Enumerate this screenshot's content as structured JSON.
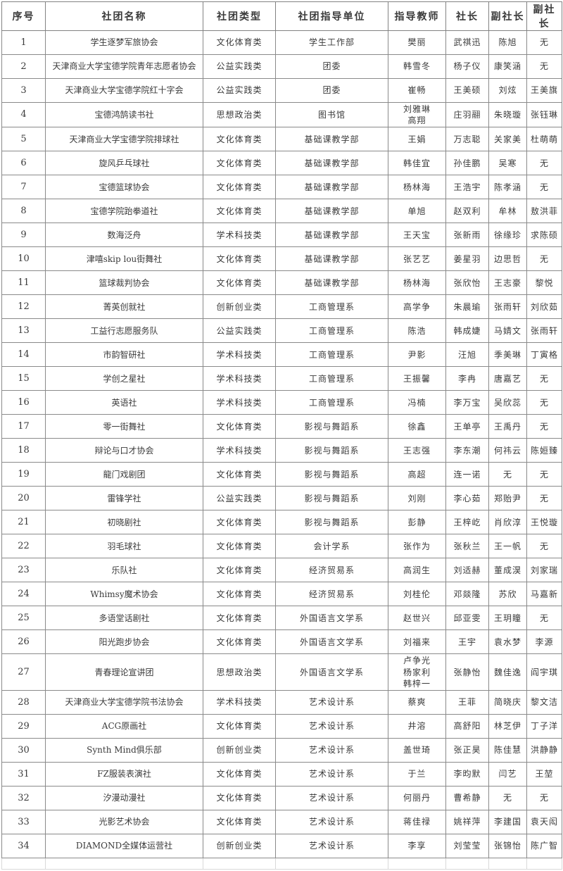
{
  "table": {
    "columns": [
      "序号",
      "社团名称",
      "社团类型",
      "社团指导单位",
      "指导教师",
      "社长",
      "副社长",
      "副社长"
    ],
    "rows": [
      [
        "1",
        "学生逐梦军旅协会",
        "文化体育类",
        "学生工作部",
        "樊丽",
        "武祺迅",
        "陈旭",
        "无"
      ],
      [
        "2",
        "天津商业大学宝德学院青年志愿者协会",
        "公益实践类",
        "团委",
        "韩雪冬",
        "杨子仪",
        "康笑涵",
        "无"
      ],
      [
        "3",
        "天津商业大学宝德学院红十字会",
        "公益实践类",
        "团委",
        "崔畅",
        "王美硕",
        "刘炫",
        "王美旗"
      ],
      [
        "4",
        "宝德鸿鹄读书社",
        "思想政治类",
        "图书馆",
        "刘雅琳\n高翔",
        "庄羽翮",
        "朱晓璇",
        "张钰琳"
      ],
      [
        "5",
        "天津商业大学宝德学院排球社",
        "文化体育类",
        "基础课教学部",
        "王娟",
        "万志聪",
        "关家美",
        "杜萌萌"
      ],
      [
        "6",
        "旋风乒乓球社",
        "文化体育类",
        "基础课教学部",
        "韩佳宜",
        "孙佳鹏",
        "吴寒",
        "无"
      ],
      [
        "7",
        "宝德篮球协会",
        "文化体育类",
        "基础课教学部",
        "杨林海",
        "王浩宇",
        "陈孝涵",
        "无"
      ],
      [
        "8",
        "宝德学院跆拳道社",
        "文化体育类",
        "基础课教学部",
        "单旭",
        "赵双利",
        "牟林",
        "敖洪菲"
      ],
      [
        "9",
        "数海泛舟",
        "学术科技类",
        "基础课教学部",
        "王天宝",
        "张新雨",
        "徐缘珍",
        "求陈硕"
      ],
      [
        "10",
        "津嘻skip lou街舞社",
        "文化体育类",
        "基础课教学部",
        "张艺艺",
        "姜星羽",
        "边思哲",
        "无"
      ],
      [
        "11",
        "篮球裁判协会",
        "文化体育类",
        "基础课教学部",
        "杨林海",
        "张欣怡",
        "王志豪",
        "黎悦"
      ],
      [
        "12",
        "菁英创就社",
        "创新创业类",
        "工商管理系",
        "高学争",
        "朱晨瑜",
        "张雨轩",
        "刘欣茹"
      ],
      [
        "13",
        "工益行志愿服务队",
        "公益实践类",
        "工商管理系",
        "陈浩",
        "韩成婕",
        "马婧文",
        "张雨轩"
      ],
      [
        "14",
        "市韵智研社",
        "学术科技类",
        "工商管理系",
        "尹影",
        "汪旭",
        "季美琳",
        "丁寅格"
      ],
      [
        "15",
        "学创之星社",
        "学术科技类",
        "工商管理系",
        "王振馨",
        "李冉",
        "唐嘉艺",
        "无"
      ],
      [
        "16",
        "英语社",
        "学术科技类",
        "工商管理系",
        "冯楠",
        "李万宝",
        "吴欣蕊",
        "无"
      ],
      [
        "17",
        "零一街舞社",
        "文化体育类",
        "影视与舞蹈系",
        "徐鑫",
        "王单亭",
        "王禹丹",
        "无"
      ],
      [
        "18",
        "辩论与口才协会",
        "学术科技类",
        "影视与舞蹈系",
        "王志强",
        "李东潮",
        "何祎云",
        "陈姮臻"
      ],
      [
        "19",
        "龍门戏剧团",
        "文化体育类",
        "影视与舞蹈系",
        "高超",
        "连一诺",
        "无",
        "无"
      ],
      [
        "20",
        "雷锋学社",
        "公益实践类",
        "影视与舞蹈系",
        "刘刚",
        "李心茹",
        "郑贻尹",
        "无"
      ],
      [
        "21",
        "初晓剧社",
        "文化体育类",
        "影视与舞蹈系",
        "彭静",
        "王梓屹",
        "肖欣淳",
        "王悦璇"
      ],
      [
        "22",
        "羽毛球社",
        "文化体育类",
        "会计学系",
        "张作为",
        "张秋兰",
        "王一帆",
        "无"
      ],
      [
        "23",
        "乐队社",
        "文化体育类",
        "经济贸易系",
        "高润生",
        "刘适赫",
        "董成淏",
        "刘家瑞"
      ],
      [
        "24",
        "Whimsy魔术协会",
        "文化体育类",
        "经济贸易系",
        "刘桂伦",
        "邓燚隆",
        "苏欣",
        "马嘉新"
      ],
      [
        "25",
        "多语堂话剧社",
        "文化体育类",
        "外国语言文学系",
        "赵世兴",
        "邱亚雯",
        "王玥瞳",
        "无"
      ],
      [
        "26",
        "阳光跑步协会",
        "文化体育类",
        "外国语言文学系",
        "刘福来",
        "王宇",
        "袁水梦",
        "李源"
      ],
      [
        "27",
        "青春理论宣讲团",
        "思想政治类",
        "外国语言文学系",
        "卢争光\n杨家利\n韩梓一",
        "张静怡",
        "魏佳逸",
        "阎宇琪"
      ],
      [
        "28",
        "天津商业大学宝德学院书法协会",
        "学术科技类",
        "艺术设计系",
        "蔡爽",
        "王菲",
        "简晓庆",
        "黎文洁"
      ],
      [
        "29",
        "ACG原画社",
        "文化体育类",
        "艺术设计系",
        "井溶",
        "高舒阳",
        "林芝伊",
        "丁子洋"
      ],
      [
        "30",
        "Synth Mind俱乐部",
        "创新创业类",
        "艺术设计系",
        "盖世琦",
        "张正昊",
        "陈佳慧",
        "洪静静"
      ],
      [
        "31",
        "FZ服装表演社",
        "文化体育类",
        "艺术设计系",
        "于兰",
        "李昀默",
        "闫艺",
        "王堃"
      ],
      [
        "32",
        "汐漫动漫社",
        "文化体育类",
        "艺术设计系",
        "何丽丹",
        "曹希静",
        "无",
        "无"
      ],
      [
        "33",
        "光影艺术协会",
        "文化体育类",
        "艺术设计系",
        "蒋佳禄",
        "姚祥萍",
        "李建国",
        "袁天闳"
      ],
      [
        "34",
        "DIAMOND全媒体运营社",
        "创新创业类",
        "艺术设计系",
        "李享",
        "刘莹莹",
        "张锦怡",
        "陈广智"
      ]
    ]
  },
  "colors": {
    "border": "#8a8a8a",
    "border_light": "#d9d9d9",
    "text": "#3a3a3a",
    "background": "#ffffff"
  }
}
